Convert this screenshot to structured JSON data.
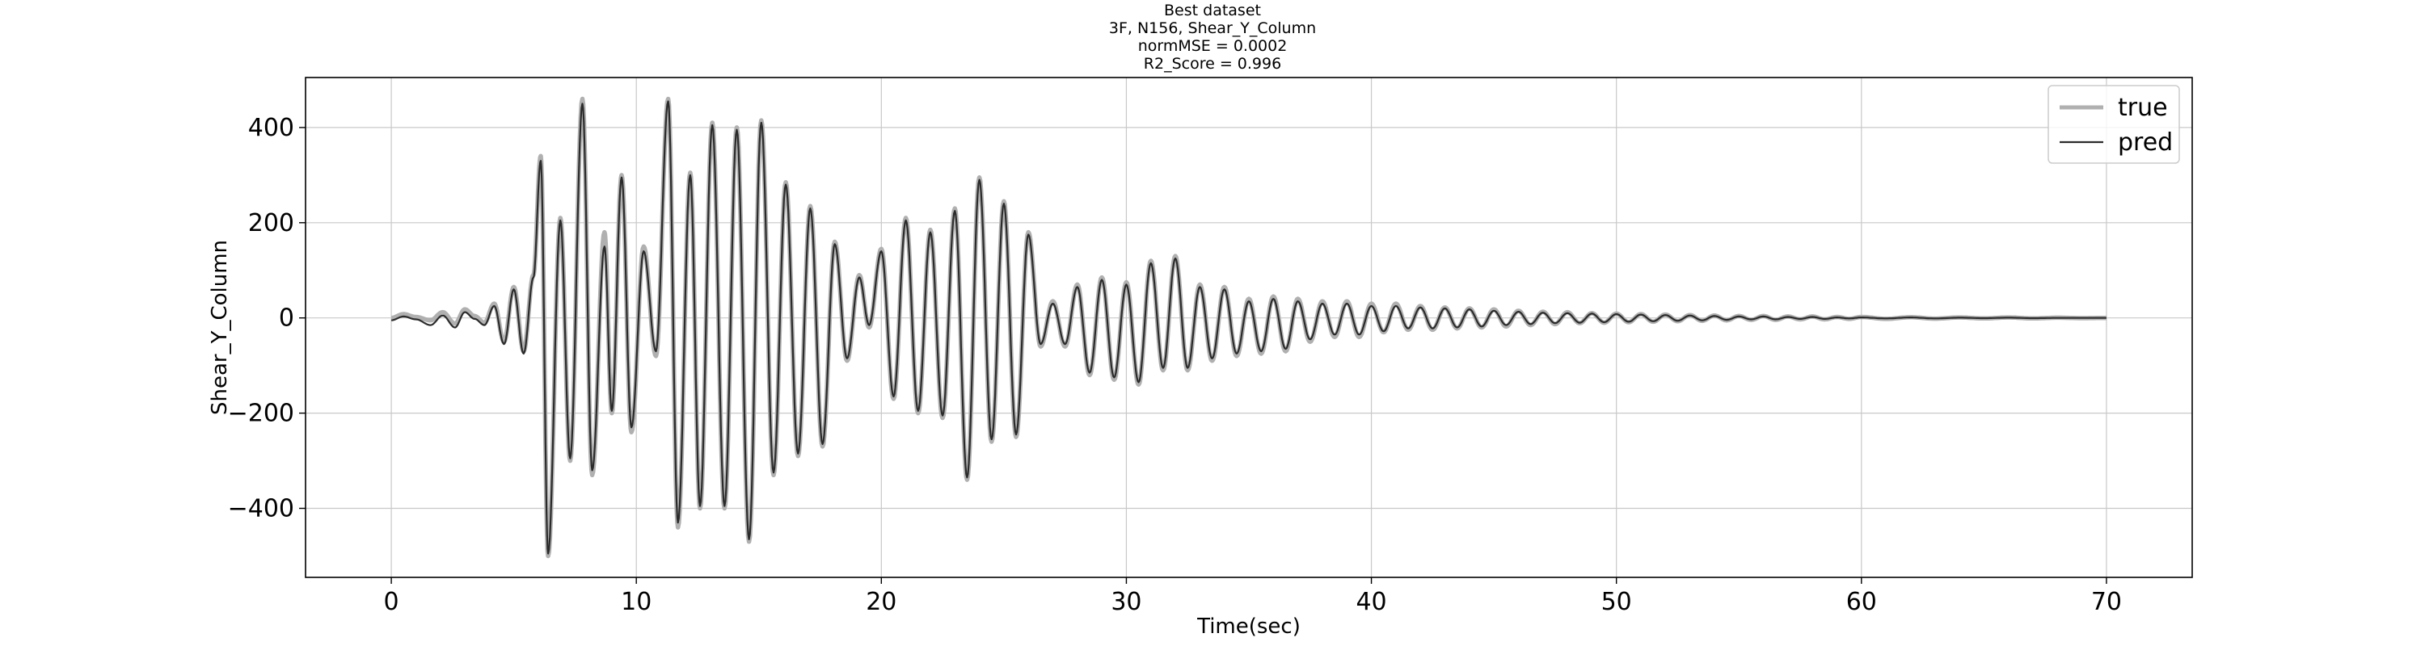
{
  "figure": {
    "title_lines": [
      "Best dataset",
      "3F, N156, Shear_Y_Column",
      "normMSE = 0.0002",
      "R2_Score = 0.996"
    ]
  },
  "chart_data": {
    "type": "line",
    "title": "Best dataset",
    "subtitle": [
      "3F, N156, Shear_Y_Column",
      "normMSE = 0.0002",
      "R2_Score = 0.996"
    ],
    "xlabel": "Time(sec)",
    "ylabel": "Shear_Y_Column",
    "xlim": [
      -3.5,
      73.5
    ],
    "ylim": [
      -545,
      505
    ],
    "xticks": [
      0,
      10,
      20,
      30,
      40,
      50,
      60,
      70
    ],
    "yticks": [
      -400,
      -200,
      0,
      200,
      400
    ],
    "xtick_labels": [
      "0",
      "10",
      "20",
      "30",
      "40",
      "50",
      "60",
      "70"
    ],
    "ytick_labels": [
      "−400",
      "−200",
      "0",
      "200",
      "400"
    ],
    "grid": true,
    "legend": {
      "position": "top-right",
      "entries": [
        "true",
        "pred"
      ]
    },
    "colors": {
      "true": "#b0b0b0",
      "pred": "#2b2b2b",
      "grid": "#c8c8c8"
    },
    "duration_sec": 70,
    "series": [
      {
        "name": "true",
        "style": "light gray, thick",
        "peaks": [
          [
            0,
            0
          ],
          [
            0.5,
            8
          ],
          [
            1.0,
            2
          ],
          [
            1.6,
            -5
          ],
          [
            2.1,
            12
          ],
          [
            2.6,
            -12
          ],
          [
            3.0,
            18
          ],
          [
            3.4,
            4
          ],
          [
            3.8,
            -10
          ],
          [
            4.2,
            30
          ],
          [
            4.6,
            -50
          ],
          [
            5.0,
            65
          ],
          [
            5.4,
            -70
          ],
          [
            5.8,
            90
          ],
          [
            6.1,
            340
          ],
          [
            6.4,
            -500
          ],
          [
            6.9,
            210
          ],
          [
            7.3,
            -300
          ],
          [
            7.8,
            460
          ],
          [
            8.2,
            -330
          ],
          [
            8.7,
            180
          ],
          [
            9.0,
            -200
          ],
          [
            9.4,
            300
          ],
          [
            9.8,
            -240
          ],
          [
            10.3,
            150
          ],
          [
            10.8,
            -80
          ],
          [
            11.3,
            460
          ],
          [
            11.7,
            -440
          ],
          [
            12.2,
            305
          ],
          [
            12.6,
            -400
          ],
          [
            13.1,
            410
          ],
          [
            13.6,
            -400
          ],
          [
            14.1,
            400
          ],
          [
            14.6,
            -470
          ],
          [
            15.1,
            415
          ],
          [
            15.6,
            -330
          ],
          [
            16.1,
            285
          ],
          [
            16.6,
            -290
          ],
          [
            17.1,
            235
          ],
          [
            17.6,
            -270
          ],
          [
            18.1,
            160
          ],
          [
            18.6,
            -90
          ],
          [
            19.1,
            90
          ],
          [
            19.5,
            -20
          ],
          [
            20.0,
            145
          ],
          [
            20.5,
            -170
          ],
          [
            21.0,
            210
          ],
          [
            21.5,
            -200
          ],
          [
            22.0,
            185
          ],
          [
            22.5,
            -210
          ],
          [
            23.0,
            230
          ],
          [
            23.5,
            -340
          ],
          [
            24.0,
            295
          ],
          [
            24.5,
            -260
          ],
          [
            25.0,
            245
          ],
          [
            25.5,
            -250
          ],
          [
            26.0,
            180
          ],
          [
            26.5,
            -60
          ],
          [
            27.0,
            35
          ],
          [
            27.5,
            -60
          ],
          [
            28.0,
            70
          ],
          [
            28.5,
            -120
          ],
          [
            29.0,
            85
          ],
          [
            29.5,
            -130
          ],
          [
            30.0,
            75
          ],
          [
            30.5,
            -140
          ],
          [
            31.0,
            120
          ],
          [
            31.5,
            -110
          ],
          [
            32.0,
            130
          ],
          [
            32.5,
            -110
          ],
          [
            33.0,
            70
          ],
          [
            33.5,
            -90
          ],
          [
            34.0,
            65
          ],
          [
            34.5,
            -80
          ],
          [
            35.0,
            40
          ],
          [
            35.5,
            -75
          ],
          [
            36.0,
            45
          ],
          [
            36.5,
            -70
          ],
          [
            37.0,
            40
          ],
          [
            37.5,
            -50
          ],
          [
            38.0,
            35
          ],
          [
            38.5,
            -40
          ],
          [
            39.0,
            35
          ],
          [
            39.5,
            -40
          ],
          [
            40.0,
            30
          ],
          [
            40.5,
            -30
          ],
          [
            41.0,
            30
          ],
          [
            41.5,
            -25
          ],
          [
            42.0,
            25
          ],
          [
            42.5,
            -25
          ],
          [
            43.0,
            22
          ],
          [
            43.5,
            -22
          ],
          [
            44.0,
            20
          ],
          [
            44.5,
            -20
          ],
          [
            45.0,
            18
          ],
          [
            45.5,
            -18
          ],
          [
            46.0,
            15
          ],
          [
            46.5,
            -15
          ],
          [
            47.0,
            13
          ],
          [
            47.5,
            -13
          ],
          [
            48.0,
            12
          ],
          [
            48.5,
            -11
          ],
          [
            49.0,
            10
          ],
          [
            49.5,
            -10
          ],
          [
            50.0,
            9
          ],
          [
            50.5,
            -9
          ],
          [
            51.0,
            8
          ],
          [
            51.5,
            -8
          ],
          [
            52.0,
            7
          ],
          [
            52.5,
            -7
          ],
          [
            53.0,
            6
          ],
          [
            53.5,
            -6
          ],
          [
            54.0,
            5
          ],
          [
            54.5,
            -5
          ],
          [
            55.0,
            4
          ],
          [
            55.5,
            -4
          ],
          [
            56.0,
            4
          ],
          [
            56.5,
            -4
          ],
          [
            57.0,
            3
          ],
          [
            57.5,
            -3
          ],
          [
            58.0,
            3
          ],
          [
            58.5,
            -3
          ],
          [
            59.0,
            2
          ],
          [
            59.5,
            -2
          ],
          [
            60.0,
            2
          ],
          [
            61,
            -2
          ],
          [
            62,
            1.5
          ],
          [
            63,
            -1.5
          ],
          [
            64,
            1
          ],
          [
            65,
            -1
          ],
          [
            66,
            1
          ],
          [
            67,
            -1
          ],
          [
            68,
            0.5
          ],
          [
            69,
            -0.5
          ],
          [
            70,
            0
          ]
        ]
      },
      {
        "name": "pred",
        "style": "dark gray, thin",
        "peaks": [
          [
            0,
            -5
          ],
          [
            0.5,
            3
          ],
          [
            1.0,
            -3
          ],
          [
            1.6,
            -15
          ],
          [
            2.1,
            5
          ],
          [
            2.6,
            -20
          ],
          [
            3.0,
            12
          ],
          [
            3.4,
            -2
          ],
          [
            3.8,
            -15
          ],
          [
            4.2,
            25
          ],
          [
            4.6,
            -55
          ],
          [
            5.0,
            60
          ],
          [
            5.4,
            -75
          ],
          [
            5.8,
            85
          ],
          [
            6.1,
            330
          ],
          [
            6.4,
            -495
          ],
          [
            6.9,
            205
          ],
          [
            7.3,
            -295
          ],
          [
            7.8,
            450
          ],
          [
            8.2,
            -320
          ],
          [
            8.7,
            150
          ],
          [
            9.0,
            -195
          ],
          [
            9.4,
            295
          ],
          [
            9.8,
            -230
          ],
          [
            10.3,
            140
          ],
          [
            10.8,
            -70
          ],
          [
            11.3,
            455
          ],
          [
            11.7,
            -430
          ],
          [
            12.2,
            300
          ],
          [
            12.6,
            -395
          ],
          [
            13.1,
            405
          ],
          [
            13.6,
            -395
          ],
          [
            14.1,
            395
          ],
          [
            14.6,
            -465
          ],
          [
            15.1,
            410
          ],
          [
            15.6,
            -325
          ],
          [
            16.1,
            280
          ],
          [
            16.6,
            -285
          ],
          [
            17.1,
            230
          ],
          [
            17.6,
            -265
          ],
          [
            18.1,
            155
          ],
          [
            18.6,
            -85
          ],
          [
            19.1,
            85
          ],
          [
            19.5,
            -15
          ],
          [
            20.0,
            140
          ],
          [
            20.5,
            -165
          ],
          [
            21.0,
            205
          ],
          [
            21.5,
            -195
          ],
          [
            22.0,
            180
          ],
          [
            22.5,
            -205
          ],
          [
            23.0,
            225
          ],
          [
            23.5,
            -335
          ],
          [
            24.0,
            290
          ],
          [
            24.5,
            -255
          ],
          [
            25.0,
            240
          ],
          [
            25.5,
            -245
          ],
          [
            26.0,
            175
          ],
          [
            26.5,
            -55
          ],
          [
            27.0,
            30
          ],
          [
            27.5,
            -55
          ],
          [
            28.0,
            65
          ],
          [
            28.5,
            -115
          ],
          [
            29.0,
            80
          ],
          [
            29.5,
            -125
          ],
          [
            30.0,
            70
          ],
          [
            30.5,
            -135
          ],
          [
            31.0,
            115
          ],
          [
            31.5,
            -105
          ],
          [
            32.0,
            125
          ],
          [
            32.5,
            -105
          ],
          [
            33.0,
            65
          ],
          [
            33.5,
            -85
          ],
          [
            34.0,
            60
          ],
          [
            34.5,
            -75
          ],
          [
            35.0,
            35
          ],
          [
            35.5,
            -70
          ],
          [
            36.0,
            40
          ],
          [
            36.5,
            -65
          ],
          [
            37.0,
            35
          ],
          [
            37.5,
            -45
          ],
          [
            38.0,
            30
          ],
          [
            38.5,
            -35
          ],
          [
            39.0,
            30
          ],
          [
            39.5,
            -35
          ],
          [
            40.0,
            25
          ],
          [
            40.5,
            -28
          ],
          [
            41.0,
            25
          ],
          [
            41.5,
            -22
          ],
          [
            42.0,
            22
          ],
          [
            42.5,
            -22
          ],
          [
            43.0,
            20
          ],
          [
            43.5,
            -20
          ],
          [
            44.0,
            18
          ],
          [
            44.5,
            -18
          ],
          [
            45.0,
            15
          ],
          [
            45.5,
            -15
          ],
          [
            46.0,
            13
          ],
          [
            46.5,
            -13
          ],
          [
            47.0,
            11
          ],
          [
            47.5,
            -11
          ],
          [
            48.0,
            10
          ],
          [
            48.5,
            -10
          ],
          [
            49.0,
            9
          ],
          [
            49.5,
            -9
          ],
          [
            50.0,
            8
          ],
          [
            50.5,
            -8
          ],
          [
            51.0,
            7
          ],
          [
            51.5,
            -7
          ],
          [
            52.0,
            6
          ],
          [
            52.5,
            -6
          ],
          [
            53.0,
            5
          ],
          [
            53.5,
            -5
          ],
          [
            54.0,
            4
          ],
          [
            54.5,
            -4
          ],
          [
            55.0,
            3
          ],
          [
            55.5,
            -3
          ],
          [
            56.0,
            3
          ],
          [
            56.5,
            -3
          ],
          [
            57.0,
            2
          ],
          [
            57.5,
            -2
          ],
          [
            58.0,
            2
          ],
          [
            58.5,
            -2
          ],
          [
            59.0,
            1
          ],
          [
            59.5,
            -1
          ],
          [
            60.0,
            1
          ],
          [
            61,
            -1
          ],
          [
            62,
            1
          ],
          [
            63,
            -1
          ],
          [
            64,
            0.5
          ],
          [
            65,
            -0.5
          ],
          [
            66,
            0.5
          ],
          [
            67,
            -0.5
          ],
          [
            68,
            0
          ],
          [
            69,
            0
          ],
          [
            70,
            0
          ]
        ]
      }
    ]
  }
}
